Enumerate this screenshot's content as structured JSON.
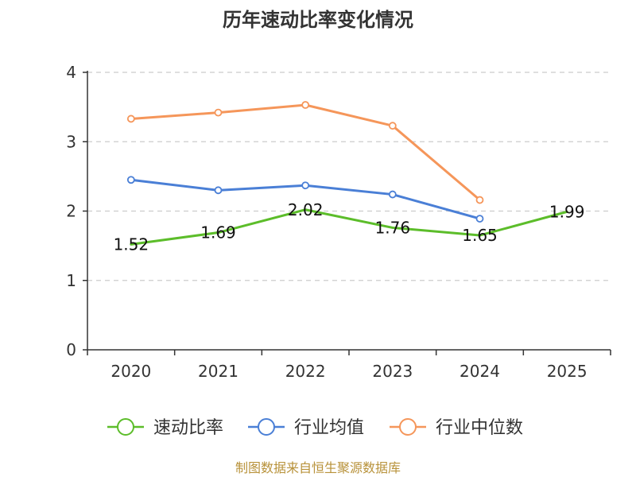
{
  "chart_data": {
    "type": "line",
    "title": "历年速动比率变化情况",
    "categories": [
      "2020",
      "2021",
      "2022",
      "2023",
      "2024",
      "2025"
    ],
    "ylim": [
      0,
      4
    ],
    "yticks": [
      "0",
      "1",
      "2",
      "3",
      "4"
    ],
    "grid": true,
    "legend_position": "bottom",
    "series": [
      {
        "name": "速动比率",
        "color": "#5cbd2a",
        "values": [
          1.52,
          1.69,
          2.02,
          1.76,
          1.65,
          1.99
        ],
        "labels": [
          "1.52",
          "1.69",
          "2.02",
          "1.76",
          "1.65",
          "1.99"
        ],
        "markers": false
      },
      {
        "name": "行业均值",
        "color": "#4a7fd6",
        "values": [
          2.45,
          2.3,
          2.37,
          2.24,
          1.89,
          null
        ],
        "markers": true
      },
      {
        "name": "行业中位数",
        "color": "#f5965a",
        "values": [
          3.33,
          3.42,
          3.53,
          3.23,
          2.16,
          null
        ],
        "markers": true
      }
    ],
    "source": "制图数据来自恒生聚源数据库"
  }
}
